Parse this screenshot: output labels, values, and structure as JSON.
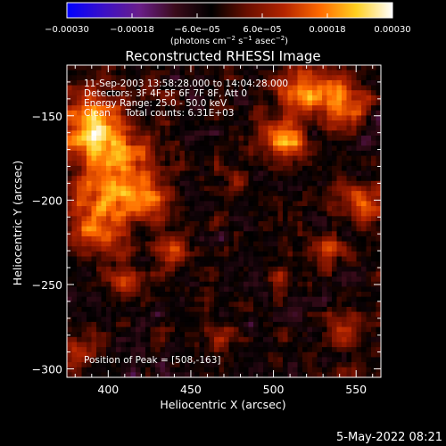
{
  "chart_data": {
    "type": "heatmap",
    "title": "Reconstructed RHESSI Image",
    "xlabel": "Heliocentric X (arcsec)",
    "ylabel": "Heliocentric Y (arcsec)",
    "xlim": [
      375,
      565
    ],
    "ylim": [
      -305,
      -120
    ],
    "x_ticks": [
      400,
      450,
      500,
      550
    ],
    "x_tick_labels": [
      "400",
      "450",
      "500",
      "550"
    ],
    "y_ticks": [
      -150,
      -200,
      -250,
      -300
    ],
    "y_tick_labels": [
      "−150",
      "−200",
      "−250",
      "−300"
    ],
    "colorbar": {
      "range": [
        -0.0003,
        0.0003
      ],
      "ticks": [
        -0.0003,
        -0.00018,
        -6e-05,
        6e-05,
        0.00018,
        0.0003
      ],
      "tick_labels": [
        "−0.00030",
        "−0.00018",
        "−6.0e−05",
        "6.0e−05",
        "0.00018",
        "0.00030"
      ],
      "label_main": "(photons cm",
      "label_exp1": "−2",
      "label_mid1": " s",
      "label_exp2": "−1",
      "label_mid2": " asec",
      "label_exp3": "−2",
      "label_end": ")",
      "colors": [
        "#0000ff",
        "#3a10c8",
        "#6a1e8a",
        "#3a0b1a",
        "#000000",
        "#6b0f00",
        "#b32400",
        "#ff6a00",
        "#ffd020",
        "#ffffff"
      ]
    },
    "annotations": [
      "11-Sep-2003 13:58:28.000 to 14:04:28.000",
      "Detectors: 3F 4F 5F 6F 7F 8F, Att 0",
      "Energy Range: 25.0 - 50.0 keV",
      "Clean     Total counts: 6.31E+03"
    ],
    "peak_label": "Position of Peak = [508,-163]",
    "peak_position": [
      508,
      -163
    ],
    "bright_regions": [
      {
        "x": 388,
        "y": -155,
        "sigma": 14,
        "amp": 1.0
      },
      {
        "x": 405,
        "y": -180,
        "sigma": 16,
        "amp": 0.9
      },
      {
        "x": 395,
        "y": -215,
        "sigma": 12,
        "amp": 0.8
      },
      {
        "x": 425,
        "y": -200,
        "sigma": 10,
        "amp": 0.7
      },
      {
        "x": 410,
        "y": -250,
        "sigma": 8,
        "amp": 0.6
      },
      {
        "x": 440,
        "y": -230,
        "sigma": 7,
        "amp": 0.7
      },
      {
        "x": 508,
        "y": -163,
        "sigma": 8,
        "amp": 1.1
      },
      {
        "x": 520,
        "y": -135,
        "sigma": 12,
        "amp": 0.8
      },
      {
        "x": 545,
        "y": -140,
        "sigma": 10,
        "amp": 0.8
      },
      {
        "x": 555,
        "y": -205,
        "sigma": 10,
        "amp": 0.7
      },
      {
        "x": 535,
        "y": -230,
        "sigma": 8,
        "amp": 0.5
      },
      {
        "x": 480,
        "y": -190,
        "sigma": 6,
        "amp": 0.4
      },
      {
        "x": 505,
        "y": -245,
        "sigma": 6,
        "amp": 0.4
      },
      {
        "x": 545,
        "y": -275,
        "sigma": 8,
        "amp": 0.5
      },
      {
        "x": 470,
        "y": -285,
        "sigma": 7,
        "amp": 0.4
      },
      {
        "x": 385,
        "y": -290,
        "sigma": 8,
        "amp": 0.5
      }
    ]
  },
  "timestamp": "5-May-2022 08:21"
}
